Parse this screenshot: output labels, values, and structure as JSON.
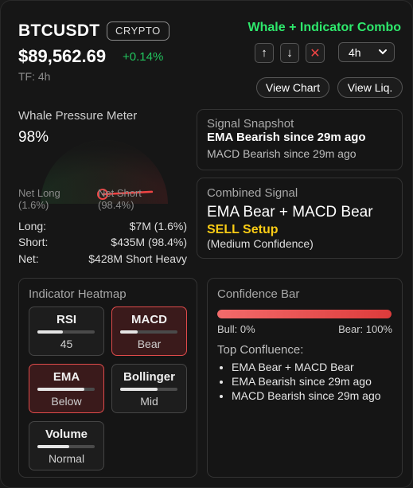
{
  "header": {
    "symbol": "BTCUSDT",
    "badge": "CRYPTO",
    "price": "$89,562.69",
    "change": "+0.14%",
    "tf_label": "TF: 4h",
    "combo_title": "Whale + Indicator Combo"
  },
  "controls": {
    "up_icon": "arrow-up-icon",
    "down_icon": "arrow-down-icon",
    "close_icon": "close-icon",
    "up_glyph": "↑",
    "down_glyph": "↓",
    "close_glyph": "✕",
    "timeframe": "4h",
    "view_chart": "View Chart",
    "view_liq": "View Liq."
  },
  "whale": {
    "title": "Whale Pressure Meter",
    "pressure_pct": "98%",
    "pressure_value": 0.984,
    "net_long_label": "Net Long",
    "net_long_pct": "(1.6%)",
    "net_short_label": "Net Short",
    "net_short_pct": "(98.4%)",
    "long_label": "Long:",
    "long_value": "$7M (1.6%)",
    "short_label": "Short:",
    "short_value": "$435M (98.4%)",
    "net_label": "Net:",
    "net_value": "$428M Short Heavy"
  },
  "snapshot": {
    "title": "Signal Snapshot",
    "main": "EMA Bearish since 29m ago",
    "sub": "MACD Bearish since 29m ago"
  },
  "combined": {
    "title": "Combined Signal",
    "main": "EMA Bear + MACD Bear",
    "setup": "SELL Setup",
    "confidence": "(Medium Confidence)"
  },
  "heatmap": {
    "title": "Indicator Heatmap",
    "tiles": [
      {
        "name": "RSI",
        "value": "45",
        "level": 0.45,
        "hot": false
      },
      {
        "name": "MACD",
        "value": "Bear",
        "level": 0.3,
        "hot": true
      },
      {
        "name": "EMA",
        "value": "Below",
        "level": 0.82,
        "hot": true
      },
      {
        "name": "Bollinger",
        "value": "Mid",
        "level": 0.65,
        "hot": false
      },
      {
        "name": "Volume",
        "value": "Normal",
        "level": 0.55,
        "hot": false
      }
    ]
  },
  "confidence": {
    "title": "Confidence Bar",
    "bull_label": "Bull: 0%",
    "bear_label": "Bear: 100%",
    "bear_value": 1.0,
    "top_title": "Top Confluence:",
    "items": [
      "EMA Bear + MACD Bear",
      "EMA Bearish since 29m ago",
      "MACD Bearish since 29m ago"
    ]
  },
  "colors": {
    "accent_green": "#2ee86c",
    "positive": "#22c55e",
    "bear_red": "#ef4444",
    "sell_yellow": "#facc15"
  }
}
